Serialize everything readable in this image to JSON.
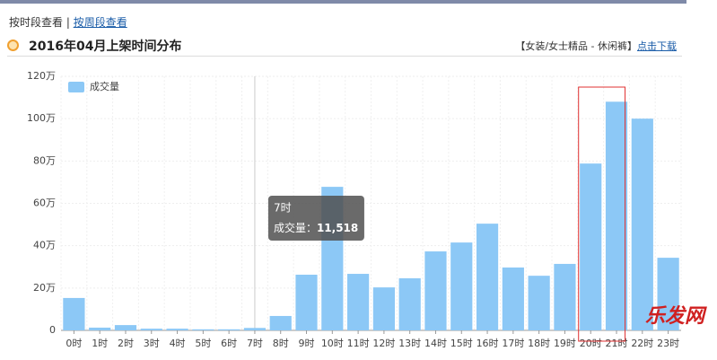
{
  "tabs": [
    "按时段查看",
    "按周段查看"
  ],
  "category_path": "【女装/女士精品 - 休闲裤】",
  "download": "点击下载",
  "watermark": "乐发网",
  "chart_data": {
    "type": "bar",
    "title": "2016年04月上架时间分布",
    "categories": [
      "0时",
      "1时",
      "2时",
      "3时",
      "4时",
      "5时",
      "6时",
      "7时",
      "8时",
      "9时",
      "10时",
      "11时",
      "12时",
      "13时",
      "14时",
      "15时",
      "16时",
      "17时",
      "18时",
      "19时",
      "20时",
      "21时",
      "22时",
      "23时"
    ],
    "series": [
      {
        "name": "成交量",
        "color": "#8cc8f6",
        "values": [
          153000,
          13000,
          25000,
          8000,
          8000,
          5000,
          5000,
          11518,
          68000,
          263000,
          678000,
          267000,
          203000,
          246000,
          373000,
          415000,
          504000,
          297000,
          258000,
          314000,
          788000,
          1080000,
          1000000,
          343000
        ]
      }
    ],
    "ylim": [
      0,
      1200000
    ],
    "yticks": [
      {
        "value": 0,
        "label": "0"
      },
      {
        "value": 200000,
        "label": "20万"
      },
      {
        "value": 400000,
        "label": "40万"
      },
      {
        "value": 600000,
        "label": "60万"
      },
      {
        "value": 800000,
        "label": "80万"
      },
      {
        "value": 1000000,
        "label": "100万"
      },
      {
        "value": 1200000,
        "label": "120万"
      }
    ],
    "grid": true,
    "legend": "top-left",
    "tooltip": {
      "title": "7时",
      "text": "成交量：",
      "value": "11,518"
    }
  }
}
